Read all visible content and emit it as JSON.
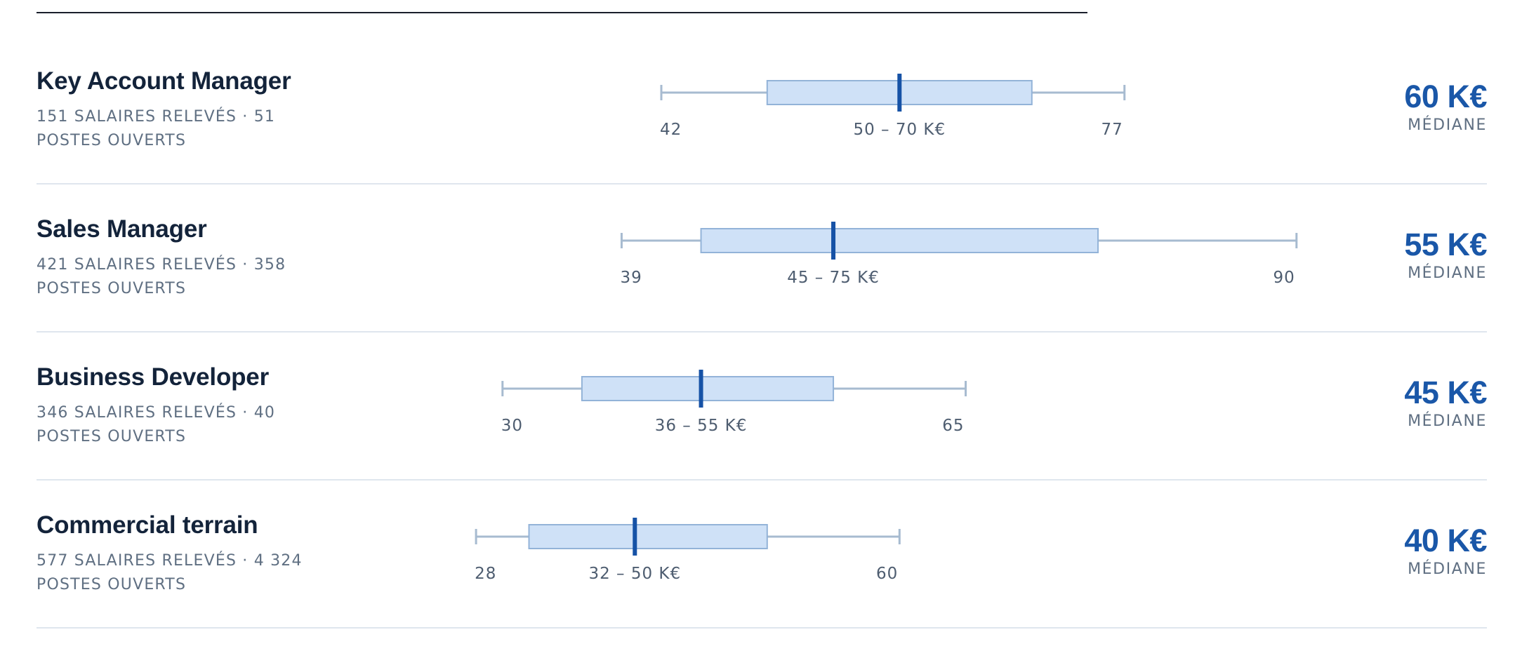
{
  "rows": [
    {
      "title": "Key Account Manager",
      "meta": "151 SALAIRES RELEVÉS · 51 POSTES OUVERTS",
      "median_value": "60 K€",
      "median_label": "MÉDIANE"
    },
    {
      "title": "Sales Manager",
      "meta": "421 SALAIRES RELEVÉS · 358 POSTES OUVERTS",
      "median_value": "55 K€",
      "median_label": "MÉDIANE"
    },
    {
      "title": "Business Developer",
      "meta": "346 SALAIRES RELEVÉS · 40 POSTES OUVERTS",
      "median_value": "45 K€",
      "median_label": "MÉDIANE"
    },
    {
      "title": "Commercial terrain",
      "meta": "577 SALAIRES RELEVÉS · 4 324 POSTES OUVERTS",
      "median_value": "40 K€",
      "median_label": "MÉDIANE"
    }
  ],
  "chart_data": {
    "type": "boxplot",
    "unit": "K€",
    "categories": [
      "Key Account Manager",
      "Sales Manager",
      "Business Developer",
      "Commercial terrain"
    ],
    "series": [
      {
        "category": "Key Account Manager",
        "min": 42,
        "q1": 50,
        "median": 60,
        "q3": 70,
        "max": 77,
        "min_label": "42",
        "range_label": "50 – 70 K€",
        "max_label": "77"
      },
      {
        "category": "Sales Manager",
        "min": 39,
        "q1": 45,
        "median": 55,
        "q3": 75,
        "max": 90,
        "min_label": "39",
        "range_label": "45 – 75 K€",
        "max_label": "90"
      },
      {
        "category": "Business Developer",
        "min": 30,
        "q1": 36,
        "median": 45,
        "q3": 55,
        "max": 65,
        "min_label": "30",
        "range_label": "36 – 55 K€",
        "max_label": "65"
      },
      {
        "category": "Commercial terrain",
        "min": 28,
        "q1": 32,
        "median": 40,
        "q3": 50,
        "max": 60,
        "min_label": "28",
        "range_label": "32 – 50 K€",
        "max_label": "60"
      }
    ],
    "xlim": [
      20,
      95
    ],
    "grid": false,
    "colors": {
      "whisker": "#a7bbd0",
      "box_fill": "#cfe1f7",
      "box_stroke": "#93b3d8",
      "median_line": "#1652a6",
      "median_text": "#1a57a8"
    }
  }
}
